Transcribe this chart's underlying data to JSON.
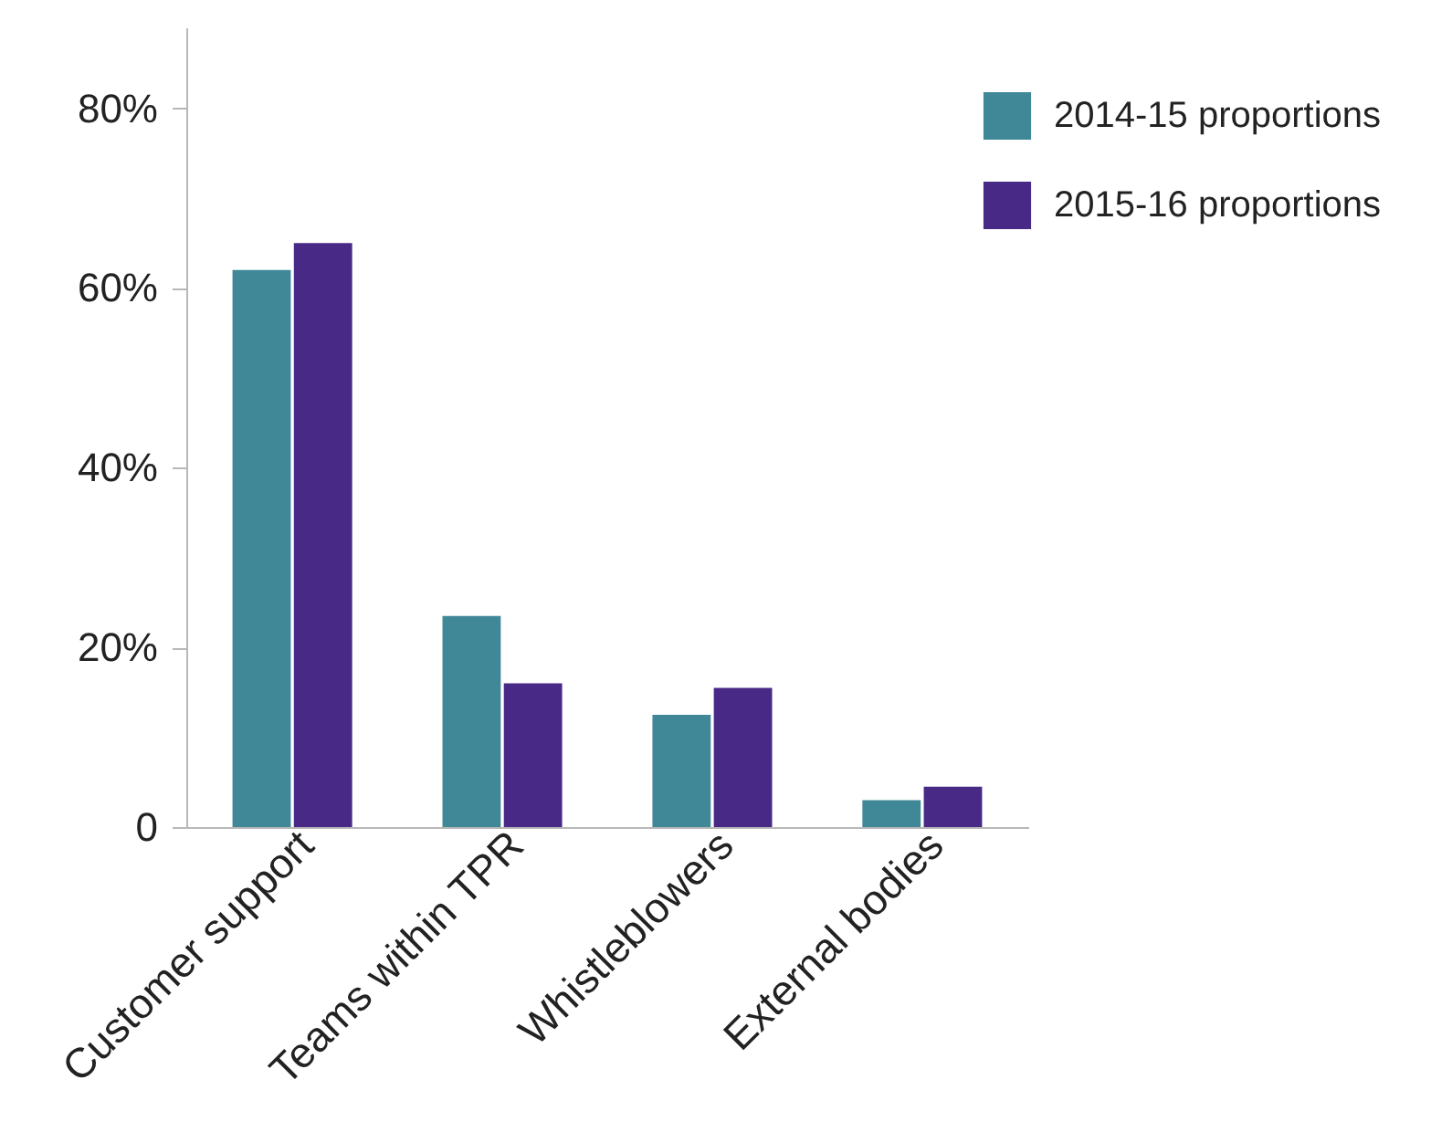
{
  "chart_data": {
    "type": "bar",
    "categories": [
      "Customer support",
      "Teams within TPR",
      "Whistleblowers",
      "External bodies"
    ],
    "series": [
      {
        "name": "2014-15 proportions",
        "color": "#408897",
        "values": [
          62,
          23.5,
          12.5,
          3
        ]
      },
      {
        "name": "2015-16 proportions",
        "color": "#482a86",
        "values": [
          65,
          16,
          15.5,
          4.5
        ]
      }
    ],
    "ylim": [
      0,
      89
    ],
    "yticks": [
      0,
      {
        "value": 20,
        "label": "20%"
      },
      {
        "value": 40,
        "label": "40%"
      },
      {
        "value": 60,
        "label": "60%"
      },
      {
        "value": 80,
        "label": "80%"
      }
    ],
    "legend": "top right"
  }
}
